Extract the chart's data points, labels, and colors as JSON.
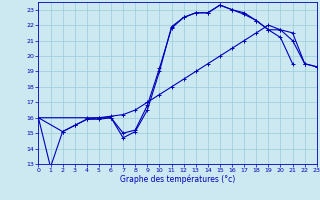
{
  "xlabel": "Graphe des températures (°c)",
  "bg_color": "#cce8f0",
  "grid_color": "#99ccdd",
  "line_color": "#0000bb",
  "xlim": [
    0,
    23
  ],
  "ylim": [
    13,
    23.5
  ],
  "yticks": [
    13,
    14,
    15,
    16,
    17,
    18,
    19,
    20,
    21,
    22,
    23
  ],
  "xticks": [
    0,
    1,
    2,
    3,
    4,
    5,
    6,
    7,
    8,
    9,
    10,
    11,
    12,
    13,
    14,
    15,
    16,
    17,
    18,
    19,
    20,
    21,
    22,
    23
  ],
  "line1_x": [
    0,
    1,
    2,
    3,
    4,
    5,
    6,
    7,
    8,
    9,
    10,
    11,
    12,
    13,
    14,
    15,
    16,
    17,
    18,
    19,
    20,
    21
  ],
  "line1_y": [
    16.0,
    12.8,
    15.1,
    15.5,
    15.9,
    15.9,
    16.0,
    14.7,
    15.1,
    16.5,
    19.0,
    21.9,
    22.5,
    22.8,
    22.8,
    23.3,
    23.0,
    22.7,
    22.3,
    21.7,
    21.2,
    19.5
  ],
  "line2_x": [
    0,
    2,
    3,
    4,
    5,
    6,
    7,
    8,
    9,
    10,
    11,
    12,
    13,
    14,
    15,
    16,
    17,
    18,
    19,
    20,
    21,
    22,
    23
  ],
  "line2_y": [
    16.0,
    15.1,
    15.5,
    15.9,
    16.0,
    16.0,
    15.0,
    15.2,
    16.8,
    19.2,
    21.8,
    22.5,
    22.8,
    22.8,
    23.3,
    23.0,
    22.8,
    22.3,
    21.7,
    21.7,
    21.5,
    19.5,
    19.3
  ],
  "line3_x": [
    0,
    4,
    5,
    6,
    7,
    8,
    9,
    10,
    11,
    12,
    13,
    14,
    15,
    16,
    17,
    18,
    19,
    20,
    21,
    22,
    23
  ],
  "line3_y": [
    16.0,
    16.0,
    16.0,
    16.1,
    16.2,
    16.5,
    17.0,
    17.5,
    18.0,
    18.5,
    19.0,
    19.5,
    20.0,
    20.5,
    21.0,
    21.5,
    22.0,
    21.7,
    21.0,
    19.5,
    19.3
  ]
}
